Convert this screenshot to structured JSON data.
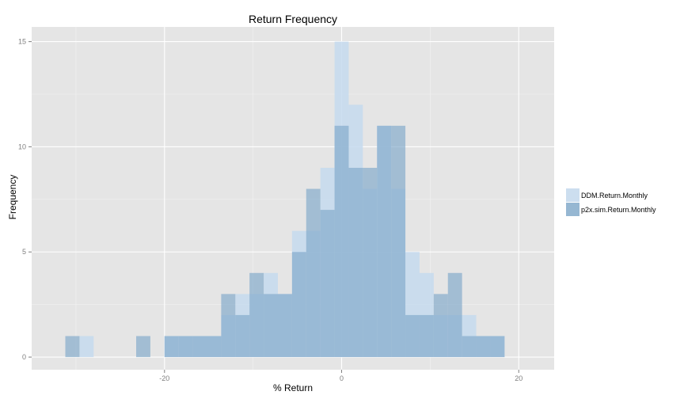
{
  "chart_data": {
    "type": "bar",
    "title": "Return Frequency",
    "xlabel": "% Return",
    "ylabel": "Frequency",
    "xlim": [
      -35,
      24
    ],
    "ylim": [
      -0.6,
      15.7
    ],
    "x_ticks": [
      -20,
      0,
      20
    ],
    "y_ticks": [
      0,
      5,
      10,
      15
    ],
    "x_tick_labels": [
      "-20",
      "0",
      "20"
    ],
    "y_tick_labels": [
      "0",
      "5",
      "10",
      "15"
    ],
    "bin_width": 1.6,
    "grid": true,
    "legend_position": "right",
    "bins": [
      -31.2,
      -29.6,
      -28.0,
      -26.4,
      -24.8,
      -23.2,
      -21.6,
      -20.0,
      -18.4,
      -16.8,
      -15.2,
      -13.6,
      -12.0,
      -10.4,
      -8.8,
      -7.2,
      -5.6,
      -4.0,
      -2.4,
      -0.8,
      0.8,
      2.4,
      4.0,
      5.6,
      7.2,
      8.8,
      10.4,
      12.0,
      13.6,
      15.2,
      16.8,
      18.4
    ],
    "series": [
      {
        "name": "DDM.Return.Monthly",
        "color": "#c6dbef",
        "values": [
          0,
          1,
          0,
          0,
          0,
          0,
          0,
          1,
          1,
          1,
          1,
          2,
          3,
          3,
          4,
          3,
          6,
          6,
          9,
          15,
          12,
          8,
          11,
          8,
          5,
          4,
          2,
          2,
          2,
          1,
          1,
          0
        ]
      },
      {
        "name": "p2x.sim.Return.Monthly",
        "color": "#9ecae1",
        "values": [
          1,
          0,
          0,
          0,
          0,
          1,
          0,
          1,
          1,
          1,
          1,
          3,
          2,
          4,
          3,
          3,
          5,
          8,
          7,
          11,
          9,
          9,
          11,
          11,
          2,
          2,
          3,
          4,
          1,
          1,
          1,
          0
        ]
      }
    ]
  },
  "colors": {
    "panel_background": "#e5e5e5",
    "grid_major": "#ffffff",
    "grid_minor": "#f2f2f2",
    "fill_ddm": "#c6dbef",
    "fill_p2x": "#7ea8c9"
  }
}
